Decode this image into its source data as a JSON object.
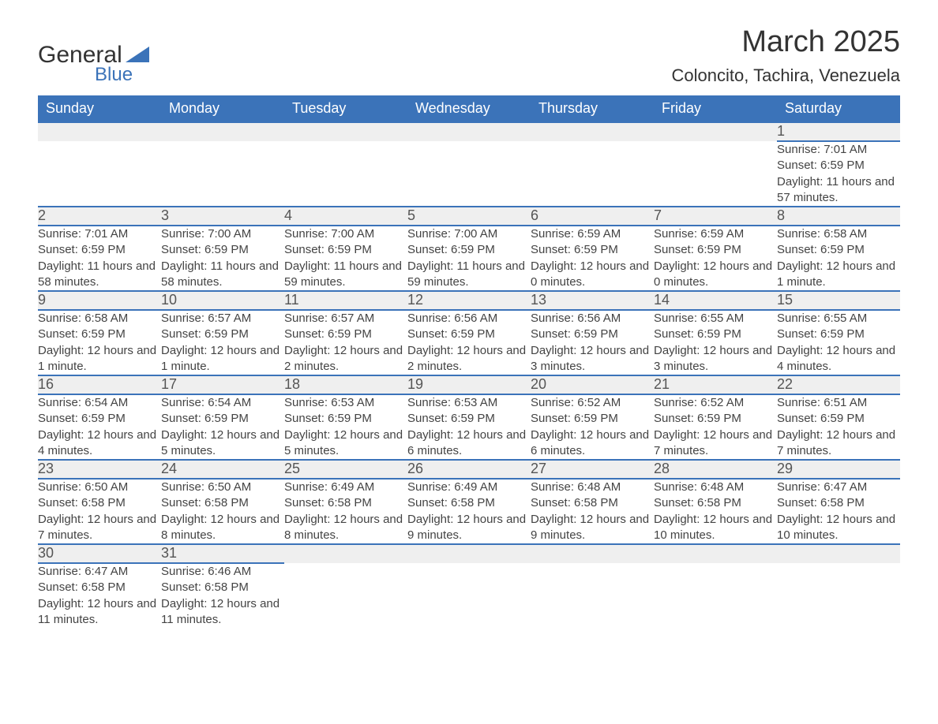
{
  "logo": {
    "text1": "General",
    "text2": "Blue",
    "triangle_color": "#3b73b9"
  },
  "title": "March 2025",
  "location": "Coloncito, Tachira, Venezuela",
  "colors": {
    "header_bg": "#3b73b9",
    "header_text": "#ffffff",
    "daynum_bg": "#efefef",
    "row_divider": "#3b73b9",
    "body_text": "#444444"
  },
  "typography": {
    "title_fontsize": 38,
    "location_fontsize": 22,
    "weekday_fontsize": 18,
    "daynum_fontsize": 18,
    "cell_fontsize": 15
  },
  "weekdays": [
    "Sunday",
    "Monday",
    "Tuesday",
    "Wednesday",
    "Thursday",
    "Friday",
    "Saturday"
  ],
  "weeks": [
    [
      null,
      null,
      null,
      null,
      null,
      null,
      {
        "day": "1",
        "sunrise": "7:01 AM",
        "sunset": "6:59 PM",
        "daylight": "11 hours and 57 minutes."
      }
    ],
    [
      {
        "day": "2",
        "sunrise": "7:01 AM",
        "sunset": "6:59 PM",
        "daylight": "11 hours and 58 minutes."
      },
      {
        "day": "3",
        "sunrise": "7:00 AM",
        "sunset": "6:59 PM",
        "daylight": "11 hours and 58 minutes."
      },
      {
        "day": "4",
        "sunrise": "7:00 AM",
        "sunset": "6:59 PM",
        "daylight": "11 hours and 59 minutes."
      },
      {
        "day": "5",
        "sunrise": "7:00 AM",
        "sunset": "6:59 PM",
        "daylight": "11 hours and 59 minutes."
      },
      {
        "day": "6",
        "sunrise": "6:59 AM",
        "sunset": "6:59 PM",
        "daylight": "12 hours and 0 minutes."
      },
      {
        "day": "7",
        "sunrise": "6:59 AM",
        "sunset": "6:59 PM",
        "daylight": "12 hours and 0 minutes."
      },
      {
        "day": "8",
        "sunrise": "6:58 AM",
        "sunset": "6:59 PM",
        "daylight": "12 hours and 1 minute."
      }
    ],
    [
      {
        "day": "9",
        "sunrise": "6:58 AM",
        "sunset": "6:59 PM",
        "daylight": "12 hours and 1 minute."
      },
      {
        "day": "10",
        "sunrise": "6:57 AM",
        "sunset": "6:59 PM",
        "daylight": "12 hours and 1 minute."
      },
      {
        "day": "11",
        "sunrise": "6:57 AM",
        "sunset": "6:59 PM",
        "daylight": "12 hours and 2 minutes."
      },
      {
        "day": "12",
        "sunrise": "6:56 AM",
        "sunset": "6:59 PM",
        "daylight": "12 hours and 2 minutes."
      },
      {
        "day": "13",
        "sunrise": "6:56 AM",
        "sunset": "6:59 PM",
        "daylight": "12 hours and 3 minutes."
      },
      {
        "day": "14",
        "sunrise": "6:55 AM",
        "sunset": "6:59 PM",
        "daylight": "12 hours and 3 minutes."
      },
      {
        "day": "15",
        "sunrise": "6:55 AM",
        "sunset": "6:59 PM",
        "daylight": "12 hours and 4 minutes."
      }
    ],
    [
      {
        "day": "16",
        "sunrise": "6:54 AM",
        "sunset": "6:59 PM",
        "daylight": "12 hours and 4 minutes."
      },
      {
        "day": "17",
        "sunrise": "6:54 AM",
        "sunset": "6:59 PM",
        "daylight": "12 hours and 5 minutes."
      },
      {
        "day": "18",
        "sunrise": "6:53 AM",
        "sunset": "6:59 PM",
        "daylight": "12 hours and 5 minutes."
      },
      {
        "day": "19",
        "sunrise": "6:53 AM",
        "sunset": "6:59 PM",
        "daylight": "12 hours and 6 minutes."
      },
      {
        "day": "20",
        "sunrise": "6:52 AM",
        "sunset": "6:59 PM",
        "daylight": "12 hours and 6 minutes."
      },
      {
        "day": "21",
        "sunrise": "6:52 AM",
        "sunset": "6:59 PM",
        "daylight": "12 hours and 7 minutes."
      },
      {
        "day": "22",
        "sunrise": "6:51 AM",
        "sunset": "6:59 PM",
        "daylight": "12 hours and 7 minutes."
      }
    ],
    [
      {
        "day": "23",
        "sunrise": "6:50 AM",
        "sunset": "6:58 PM",
        "daylight": "12 hours and 7 minutes."
      },
      {
        "day": "24",
        "sunrise": "6:50 AM",
        "sunset": "6:58 PM",
        "daylight": "12 hours and 8 minutes."
      },
      {
        "day": "25",
        "sunrise": "6:49 AM",
        "sunset": "6:58 PM",
        "daylight": "12 hours and 8 minutes."
      },
      {
        "day": "26",
        "sunrise": "6:49 AM",
        "sunset": "6:58 PM",
        "daylight": "12 hours and 9 minutes."
      },
      {
        "day": "27",
        "sunrise": "6:48 AM",
        "sunset": "6:58 PM",
        "daylight": "12 hours and 9 minutes."
      },
      {
        "day": "28",
        "sunrise": "6:48 AM",
        "sunset": "6:58 PM",
        "daylight": "12 hours and 10 minutes."
      },
      {
        "day": "29",
        "sunrise": "6:47 AM",
        "sunset": "6:58 PM",
        "daylight": "12 hours and 10 minutes."
      }
    ],
    [
      {
        "day": "30",
        "sunrise": "6:47 AM",
        "sunset": "6:58 PM",
        "daylight": "12 hours and 11 minutes."
      },
      {
        "day": "31",
        "sunrise": "6:46 AM",
        "sunset": "6:58 PM",
        "daylight": "12 hours and 11 minutes."
      },
      null,
      null,
      null,
      null,
      null
    ]
  ],
  "labels": {
    "sunrise": "Sunrise: ",
    "sunset": "Sunset: ",
    "daylight": "Daylight: "
  }
}
